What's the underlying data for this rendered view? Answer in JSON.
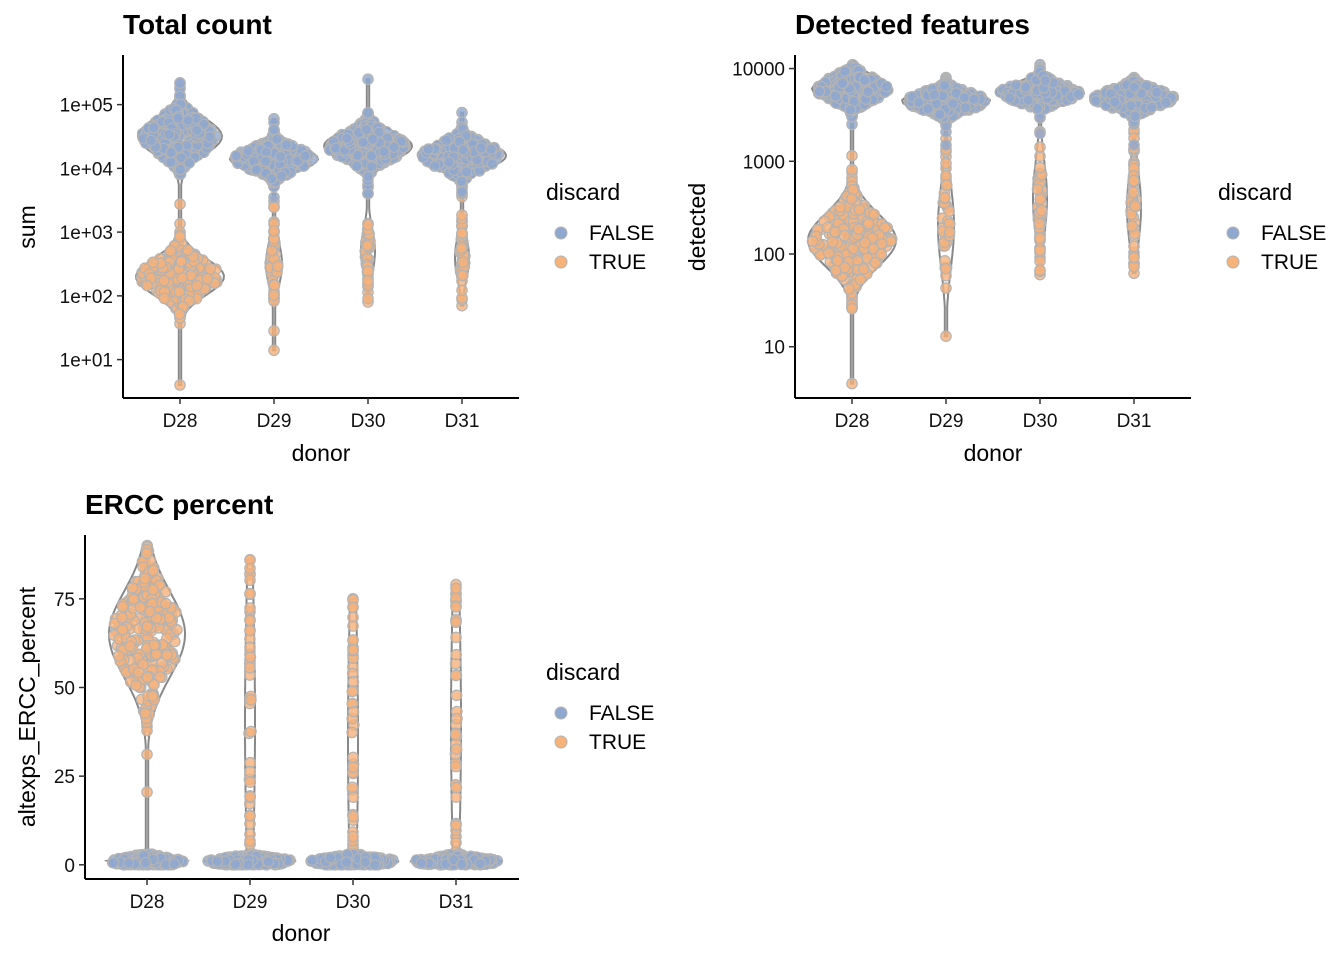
{
  "legend": {
    "title": "discard",
    "entries": [
      "FALSE",
      "TRUE"
    ]
  },
  "colors": {
    "FALSE": "#8fa8cf",
    "TRUE": "#f5b27a",
    "outline": "#b3b3b3",
    "violin": "#888888"
  },
  "chart_data": [
    {
      "type": "scatter",
      "subtype": "violin-beeswarm",
      "title": "Total count",
      "xlabel": "donor",
      "ylabel": "sum",
      "yscale": "log",
      "ylim": [
        2.5,
        600000
      ],
      "categories": [
        "D28",
        "D29",
        "D30",
        "D31"
      ],
      "yticks": [
        10,
        100,
        1000,
        10000,
        100000
      ],
      "ytick_labels": [
        "1e+01",
        "1e+02",
        "1e+03",
        "1e+04",
        "1e+05"
      ],
      "series": [
        {
          "name": "FALSE",
          "values": [
            {
              "donor": "D28",
              "center": 30000,
              "range": [
                8000,
                220000
              ]
            },
            {
              "donor": "D29",
              "center": 14000,
              "range": [
                3500,
                60000
              ]
            },
            {
              "donor": "D30",
              "center": 22000,
              "range": [
                4000,
                250000
              ]
            },
            {
              "donor": "D31",
              "center": 15000,
              "range": [
                4000,
                75000
              ]
            }
          ]
        },
        {
          "name": "TRUE",
          "values": [
            {
              "donor": "D28",
              "center": 200,
              "range": [
                4,
                15000
              ]
            },
            {
              "donor": "D29",
              "center": 300,
              "range": [
                14,
                3000
              ]
            },
            {
              "donor": "D30",
              "center": 500,
              "range": [
                80,
                4000
              ]
            },
            {
              "donor": "D31",
              "center": 400,
              "range": [
                70,
                4000
              ]
            }
          ]
        }
      ]
    },
    {
      "type": "scatter",
      "subtype": "violin-beeswarm",
      "title": "Detected features",
      "xlabel": "donor",
      "ylabel": "detected",
      "yscale": "log",
      "ylim": [
        2.8,
        14000
      ],
      "categories": [
        "D28",
        "D29",
        "D30",
        "D31"
      ],
      "yticks": [
        10,
        100,
        1000,
        10000
      ],
      "ytick_labels": [
        "10",
        "100",
        "1000",
        "10000"
      ],
      "series": [
        {
          "name": "FALSE",
          "values": [
            {
              "donor": "D28",
              "center": 6000,
              "range": [
                2500,
                11000
              ]
            },
            {
              "donor": "D29",
              "center": 4500,
              "range": [
                1500,
                8000
              ]
            },
            {
              "donor": "D30",
              "center": 5500,
              "range": [
                2000,
                11000
              ]
            },
            {
              "donor": "D31",
              "center": 4700,
              "range": [
                1500,
                8000
              ]
            }
          ]
        },
        {
          "name": "TRUE",
          "values": [
            {
              "donor": "D28",
              "center": 150,
              "range": [
                4,
                4000
              ]
            },
            {
              "donor": "D29",
              "center": 200,
              "range": [
                13,
                3000
              ]
            },
            {
              "donor": "D30",
              "center": 400,
              "range": [
                60,
                3000
              ]
            },
            {
              "donor": "D31",
              "center": 300,
              "range": [
                62,
                3000
              ]
            }
          ]
        }
      ]
    },
    {
      "type": "scatter",
      "subtype": "violin-beeswarm",
      "title": "ERCC percent",
      "xlabel": "donor",
      "ylabel": "altexps_ERCC_percent",
      "yscale": "linear",
      "ylim": [
        -4,
        93
      ],
      "categories": [
        "D28",
        "D29",
        "D30",
        "D31"
      ],
      "yticks": [
        0,
        25,
        50,
        75
      ],
      "ytick_labels": [
        "0",
        "25",
        "50",
        "75"
      ],
      "series": [
        {
          "name": "FALSE",
          "values": [
            {
              "donor": "D28",
              "center": 1,
              "range": [
                0,
                3
              ]
            },
            {
              "donor": "D29",
              "center": 1,
              "range": [
                0,
                3
              ]
            },
            {
              "donor": "D30",
              "center": 1,
              "range": [
                0,
                3
              ]
            },
            {
              "donor": "D31",
              "center": 1,
              "range": [
                0,
                3
              ]
            }
          ]
        },
        {
          "name": "TRUE",
          "values": [
            {
              "donor": "D28",
              "center": 65,
              "range": [
                0,
                90
              ]
            },
            {
              "donor": "D29",
              "center": 40,
              "range": [
                0,
                86
              ]
            },
            {
              "donor": "D30",
              "center": 35,
              "range": [
                0,
                75
              ]
            },
            {
              "donor": "D31",
              "center": 40,
              "range": [
                0,
                79
              ]
            }
          ]
        }
      ]
    }
  ]
}
